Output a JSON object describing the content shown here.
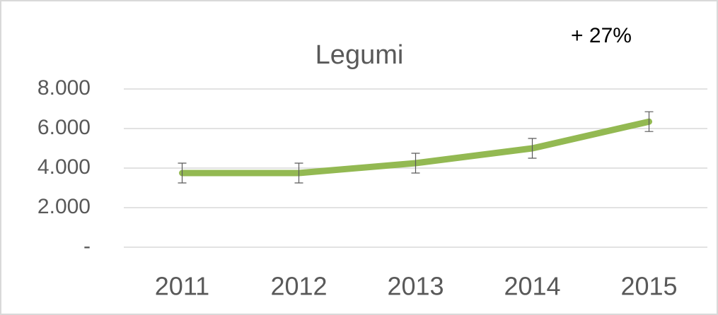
{
  "chart_data": {
    "type": "line",
    "title": "Legumi",
    "annotation": "+ 27%",
    "categories": [
      "2011",
      "2012",
      "2013",
      "2014",
      "2015"
    ],
    "series": [
      {
        "color": "#93b952",
        "values": [
          3750,
          3750,
          4250,
          5000,
          6350
        ],
        "errors": [
          500,
          500,
          500,
          500,
          500
        ]
      }
    ],
    "ylim": [
      0,
      8000
    ],
    "yticks": [
      {
        "value": 0,
        "label": "-"
      },
      {
        "value": 2000,
        "label": "2.000"
      },
      {
        "value": 4000,
        "label": "4.000"
      },
      {
        "value": 6000,
        "label": "6.000"
      },
      {
        "value": 8000,
        "label": "8.000"
      }
    ],
    "grid": true
  }
}
